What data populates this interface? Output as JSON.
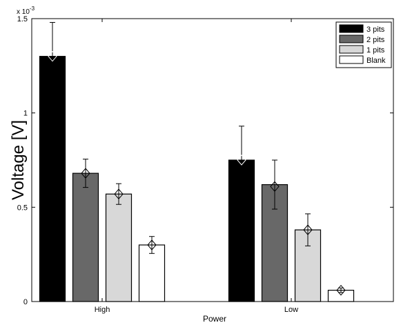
{
  "chart_data": {
    "type": "bar",
    "title": "",
    "xlabel": "Power",
    "ylabel": "Voltage [V]",
    "y_multiplier": "x 10",
    "y_exponent": "-3",
    "ylim": [
      0,
      1.5
    ],
    "y_ticks": [
      {
        "value": 0,
        "label": "0"
      },
      {
        "value": 0.5,
        "label": "0.5"
      },
      {
        "value": 1,
        "label": "1"
      },
      {
        "value": 1.5,
        "label": "1.5"
      }
    ],
    "categories": [
      "High",
      "Low"
    ],
    "series": [
      {
        "name": "3 pits",
        "color": "#000000",
        "values": [
          1.3,
          0.75
        ],
        "errors": [
          0.18,
          0.18
        ]
      },
      {
        "name": "2 pits",
        "color": "#686868",
        "values": [
          0.68,
          0.62
        ],
        "errors": [
          0.075,
          0.13
        ]
      },
      {
        "name": "1 pits",
        "color": "#d8d8d8",
        "values": [
          0.57,
          0.38
        ],
        "errors": [
          0.055,
          0.085
        ]
      },
      {
        "name": "Blank",
        "color": "#ffffff",
        "values": [
          0.3,
          0.06
        ],
        "errors": [
          0.045,
          0.012
        ]
      }
    ],
    "markers": [
      [
        1.3,
        0.75
      ],
      [
        0.68,
        0.61
      ],
      [
        0.57,
        0.38
      ],
      [
        0.3,
        0.06
      ]
    ],
    "legend_position": "top-right",
    "grid": false
  }
}
